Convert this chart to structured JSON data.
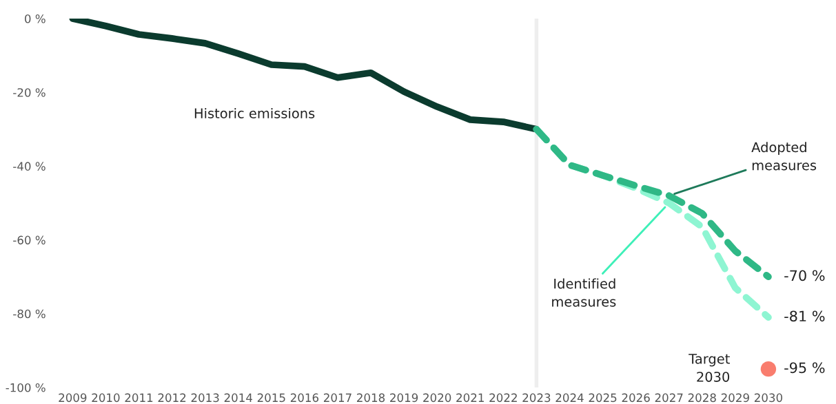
{
  "chart_data": {
    "type": "line",
    "categories": [
      "2009",
      "2010",
      "2011",
      "2012",
      "2013",
      "2014",
      "2015",
      "2016",
      "2017",
      "2018",
      "2019",
      "2020",
      "2021",
      "2022",
      "2023",
      "2024",
      "2025",
      "2026",
      "2027",
      "2028",
      "2029",
      "2030"
    ],
    "series": [
      {
        "color": "#0b3b2e",
        "line_style": "solid",
        "values": [
          0,
          -2,
          -4.3,
          -5.4,
          -6.7,
          -9.5,
          -12.5,
          -13,
          -16,
          -14.7,
          -19.8,
          -23.9,
          -27.4,
          -28,
          -30,
          null,
          null,
          null,
          null,
          null,
          null,
          null
        ]
      },
      {
        "color": "#8ef5d2",
        "line_style": "dashed",
        "values": [
          null,
          null,
          null,
          null,
          null,
          null,
          null,
          null,
          null,
          null,
          null,
          null,
          null,
          null,
          -30,
          -39.7,
          -42.5,
          -46,
          -50,
          -56.5,
          -73,
          -81
        ],
        "value_labels": [
          null,
          null,
          null,
          null,
          null,
          null,
          null,
          null,
          null,
          null,
          null,
          null,
          null,
          null,
          null,
          null,
          null,
          null,
          null,
          null,
          null,
          "-81 %"
        ]
      },
      {
        "color": "#2fb886",
        "line_style": "dashed",
        "values": [
          null,
          null,
          null,
          null,
          null,
          null,
          null,
          null,
          null,
          null,
          null,
          null,
          null,
          null,
          -30,
          -39.7,
          -42.5,
          -45.3,
          -48,
          -52.8,
          -63,
          -70
        ],
        "value_labels": [
          null,
          null,
          null,
          null,
          null,
          null,
          null,
          null,
          null,
          null,
          null,
          null,
          null,
          null,
          null,
          null,
          null,
          null,
          null,
          null,
          null,
          "-70 %"
        ]
      },
      {
        "type": "scatter",
        "color": "#f97d6e",
        "marker": "circle",
        "values": [
          null,
          null,
          null,
          null,
          null,
          null,
          null,
          null,
          null,
          null,
          null,
          null,
          null,
          null,
          null,
          null,
          null,
          null,
          null,
          null,
          null,
          -95
        ],
        "value_labels": [
          null,
          null,
          null,
          null,
          null,
          null,
          null,
          null,
          null,
          null,
          null,
          null,
          null,
          null,
          null,
          null,
          null,
          null,
          null,
          null,
          null,
          "-95 %"
        ]
      }
    ],
    "ylim": [
      -100,
      0
    ],
    "yticks": [
      {
        "value": 0,
        "label": "0 %"
      },
      {
        "value": -20,
        "label": "-20 %"
      },
      {
        "value": -40,
        "label": "-40 %"
      },
      {
        "value": -60,
        "label": "-60 %"
      },
      {
        "value": -80,
        "label": "-80 %"
      },
      {
        "value": -100,
        "label": "-100 %"
      }
    ],
    "ref_lines": [
      {
        "axis": "x",
        "value": "2023",
        "color": "#eeeeee"
      }
    ],
    "annotations": [
      "Historic emissions",
      {
        "text": "Adopted\nmeasures",
        "x": "2027",
        "y": -48
      },
      {
        "text": "Identified\nmeasures",
        "x": "2027",
        "y": -50
      },
      {
        "text": "Target\n2030",
        "x": "2030",
        "y": -95
      }
    ],
    "grid": false
  }
}
